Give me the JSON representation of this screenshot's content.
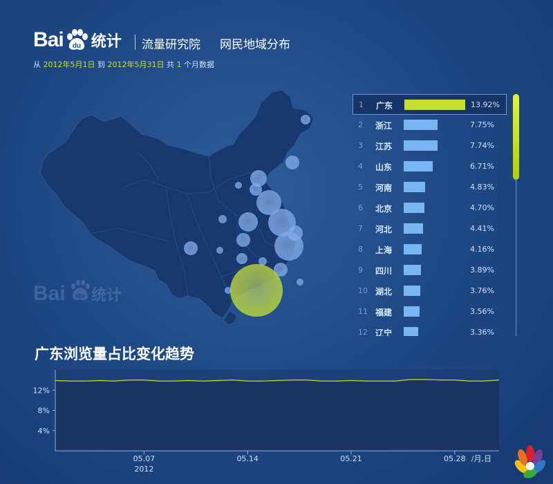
{
  "header": {
    "logo_bai": "Bai",
    "logo_du": "du",
    "logo_tongji": "统计",
    "sub1": "流量研究院",
    "sub2": "网民地域分布"
  },
  "date_line": {
    "from": "从",
    "start": "2012年5月1日",
    "to": "到",
    "end": "2012年5月31日",
    "total": "共",
    "count": "1",
    "unit": "个月数据"
  },
  "ranking": [
    {
      "rank": "1",
      "province": "广东",
      "value": 13.92,
      "pct": "13.92%"
    },
    {
      "rank": "2",
      "province": "浙江",
      "value": 7.75,
      "pct": "7.75%"
    },
    {
      "rank": "3",
      "province": "江苏",
      "value": 7.74,
      "pct": "7.74%"
    },
    {
      "rank": "4",
      "province": "山东",
      "value": 6.71,
      "pct": "6.71%"
    },
    {
      "rank": "5",
      "province": "河南",
      "value": 4.83,
      "pct": "4.83%"
    },
    {
      "rank": "6",
      "province": "北京",
      "value": 4.7,
      "pct": "4.70%"
    },
    {
      "rank": "7",
      "province": "河北",
      "value": 4.41,
      "pct": "4.41%"
    },
    {
      "rank": "8",
      "province": "上海",
      "value": 4.16,
      "pct": "4.16%"
    },
    {
      "rank": "9",
      "province": "四川",
      "value": 3.89,
      "pct": "3.89%"
    },
    {
      "rank": "10",
      "province": "湖北",
      "value": 3.76,
      "pct": "3.76%"
    },
    {
      "rank": "11",
      "province": "福建",
      "value": 3.56,
      "pct": "3.56%"
    },
    {
      "rank": "12",
      "province": "辽宁",
      "value": 3.36,
      "pct": "3.36%"
    }
  ],
  "colors": {
    "highlight": "#c8e02b",
    "bar": "#79b4f3",
    "line": "#c8e02b"
  },
  "chart_data": [
    {
      "type": "bar",
      "categories": [
        "广东",
        "浙江",
        "江苏",
        "山东",
        "河南",
        "北京",
        "河北",
        "上海",
        "四川",
        "湖北",
        "福建",
        "辽宁"
      ],
      "values": [
        13.92,
        7.75,
        7.74,
        6.71,
        4.83,
        4.7,
        4.41,
        4.16,
        3.89,
        3.76,
        3.56,
        3.36
      ],
      "unit": "%"
    },
    {
      "type": "area",
      "title": "广东浏览量占比变化趋势",
      "x_ticks": [
        "05.07",
        "05.14",
        "05.21",
        "05.28"
      ],
      "x_tick_days": [
        7,
        14,
        21,
        28
      ],
      "year_label": "2012",
      "period_label": "/月,日",
      "y_ticks": [
        "4%",
        "8%",
        "12%"
      ],
      "y_tick_values": [
        4,
        8,
        12
      ],
      "ylim": [
        0,
        16
      ],
      "x": [
        1,
        2,
        3,
        4,
        5,
        6,
        7,
        8,
        9,
        10,
        11,
        12,
        13,
        14,
        15,
        16,
        17,
        18,
        19,
        20,
        21,
        22,
        23,
        24,
        25,
        26,
        27,
        28,
        29,
        30,
        31
      ],
      "values": [
        13.9,
        13.8,
        13.8,
        13.9,
        13.8,
        14.0,
        14.0,
        13.8,
        13.8,
        13.9,
        13.8,
        13.9,
        14.0,
        13.8,
        13.8,
        13.9,
        14.0,
        14.0,
        13.8,
        13.8,
        13.9,
        13.8,
        13.8,
        13.8,
        14.1,
        14.1,
        14.0,
        14.0,
        13.8,
        13.8,
        14.0
      ]
    }
  ]
}
